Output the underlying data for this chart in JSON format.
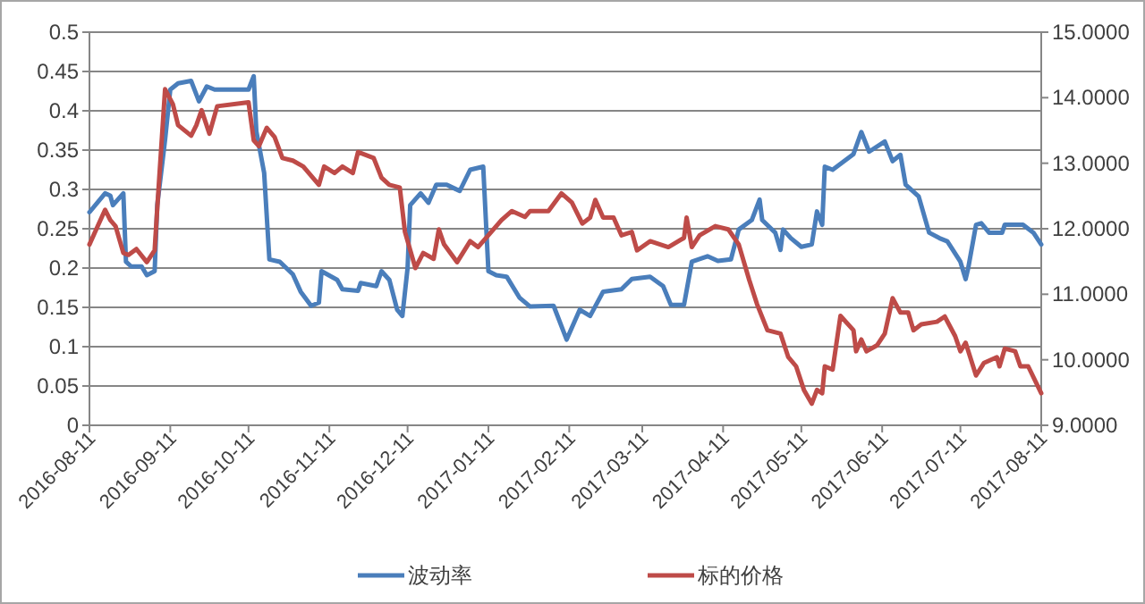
{
  "chart_data": {
    "type": "line",
    "legend": "bottom",
    "grid": "y",
    "line_style": "solid",
    "marker": "none",
    "xlim": [
      "2016-08-11",
      "2017-08-11"
    ],
    "xticks": [
      "2016-08-11",
      "2016-09-11",
      "2016-10-11",
      "2016-11-11",
      "2016-12-11",
      "2017-01-11",
      "2017-02-11",
      "2017-03-11",
      "2017-04-11",
      "2017-05-11",
      "2017-06-11",
      "2017-07-11",
      "2017-08-11"
    ],
    "ylim": [
      0,
      0.5
    ],
    "yticks": [
      0,
      0.05,
      0.1,
      0.15,
      0.2,
      0.25,
      0.3,
      0.35,
      0.4,
      0.45,
      0.5
    ],
    "y2lim": [
      9,
      15
    ],
    "y2ticks": [
      {
        "value": 9,
        "label": "9.0000"
      },
      {
        "value": 10,
        "label": "10.0000"
      },
      {
        "value": 11,
        "label": "11.0000"
      },
      {
        "value": 12,
        "label": "12.0000"
      },
      {
        "value": 13,
        "label": "13.0000"
      },
      {
        "value": 14,
        "label": "14.0000"
      },
      {
        "value": 15,
        "label": "15.0000"
      }
    ],
    "series": [
      {
        "name": "波动率",
        "color": "#4a7ebb",
        "x": [
          "2016-08-11",
          "2016-08-17",
          "2016-08-19",
          "2016-08-20",
          "2016-08-24",
          "2016-08-25",
          "2016-08-27",
          "2016-08-31",
          "2016-09-02",
          "2016-09-05",
          "2016-09-06",
          "2016-09-09",
          "2016-09-11",
          "2016-09-14",
          "2016-09-19",
          "2016-09-22",
          "2016-09-25",
          "2016-09-28",
          "2016-10-11",
          "2016-10-13",
          "2016-10-14",
          "2016-10-17",
          "2016-10-19",
          "2016-10-23",
          "2016-10-28",
          "2016-10-31",
          "2016-11-04",
          "2016-11-07",
          "2016-11-08",
          "2016-11-14",
          "2016-11-16",
          "2016-11-22",
          "2016-11-23",
          "2016-11-29",
          "2016-12-01",
          "2016-12-04",
          "2016-12-07",
          "2016-12-09",
          "2016-12-11",
          "2016-12-12",
          "2016-12-16",
          "2016-12-19",
          "2016-12-22",
          "2016-12-26",
          "2016-12-31",
          "2017-01-04",
          "2017-01-09",
          "2017-01-11",
          "2017-01-14",
          "2017-01-18",
          "2017-01-23",
          "2017-01-27",
          "2017-02-05",
          "2017-02-10",
          "2017-02-15",
          "2017-02-19",
          "2017-02-24",
          "2017-03-03",
          "2017-03-07",
          "2017-03-14",
          "2017-03-19",
          "2017-03-22",
          "2017-03-27",
          "2017-03-30",
          "2017-04-05",
          "2017-04-09",
          "2017-04-14",
          "2017-04-17",
          "2017-04-22",
          "2017-04-25",
          "2017-04-26",
          "2017-05-01",
          "2017-05-03",
          "2017-05-04",
          "2017-05-07",
          "2017-05-11",
          "2017-05-15",
          "2017-05-17",
          "2017-05-19",
          "2017-05-20",
          "2017-05-23",
          "2017-05-31",
          "2017-06-03",
          "2017-06-06",
          "2017-06-12",
          "2017-06-15",
          "2017-06-18",
          "2017-06-20",
          "2017-06-25",
          "2017-06-29",
          "2017-07-03",
          "2017-07-06",
          "2017-07-11",
          "2017-07-13",
          "2017-07-14",
          "2017-07-17",
          "2017-07-19",
          "2017-07-22",
          "2017-07-27",
          "2017-07-28",
          "2017-08-04",
          "2017-08-08",
          "2017-08-11"
        ],
        "values": [
          0.271,
          0.295,
          0.292,
          0.28,
          0.295,
          0.208,
          0.202,
          0.202,
          0.191,
          0.196,
          0.28,
          0.363,
          0.427,
          0.435,
          0.438,
          0.412,
          0.431,
          0.427,
          0.427,
          0.444,
          0.374,
          0.321,
          0.211,
          0.208,
          0.192,
          0.17,
          0.152,
          0.156,
          0.196,
          0.185,
          0.173,
          0.171,
          0.181,
          0.177,
          0.196,
          0.185,
          0.147,
          0.139,
          0.2,
          0.28,
          0.295,
          0.283,
          0.306,
          0.306,
          0.298,
          0.325,
          0.329,
          0.196,
          0.191,
          0.189,
          0.162,
          0.151,
          0.152,
          0.109,
          0.147,
          0.139,
          0.17,
          0.173,
          0.186,
          0.189,
          0.177,
          0.153,
          0.153,
          0.208,
          0.215,
          0.209,
          0.211,
          0.249,
          0.261,
          0.287,
          0.261,
          0.245,
          0.223,
          0.249,
          0.238,
          0.227,
          0.23,
          0.272,
          0.255,
          0.329,
          0.325,
          0.345,
          0.373,
          0.348,
          0.361,
          0.336,
          0.344,
          0.306,
          0.291,
          0.245,
          0.238,
          0.234,
          0.208,
          0.186,
          0.2,
          0.255,
          0.257,
          0.245,
          0.245,
          0.255,
          0.255,
          0.245,
          0.23
        ]
      },
      {
        "name": "标的价格",
        "color": "#be4b48",
        "axis": "y2",
        "x": [
          "2016-08-11",
          "2016-08-17",
          "2016-08-19",
          "2016-08-21",
          "2016-08-24",
          "2016-08-26",
          "2016-08-29",
          "2016-09-02",
          "2016-09-05",
          "2016-09-06",
          "2016-09-09",
          "2016-09-12",
          "2016-09-14",
          "2016-09-19",
          "2016-09-21",
          "2016-09-23",
          "2016-09-26",
          "2016-09-29",
          "2016-10-11",
          "2016-10-13",
          "2016-10-15",
          "2016-10-18",
          "2016-10-21",
          "2016-10-24",
          "2016-10-28",
          "2016-11-01",
          "2016-11-07",
          "2016-11-09",
          "2016-11-13",
          "2016-11-16",
          "2016-11-20",
          "2016-11-22",
          "2016-11-28",
          "2016-12-01",
          "2016-12-04",
          "2016-12-08",
          "2016-12-10",
          "2016-12-14",
          "2016-12-17",
          "2016-12-21",
          "2016-12-23",
          "2016-12-25",
          "2016-12-30",
          "2017-01-04",
          "2017-01-07",
          "2017-01-16",
          "2017-01-20",
          "2017-01-25",
          "2017-01-27",
          "2017-02-03",
          "2017-02-08",
          "2017-02-12",
          "2017-02-16",
          "2017-02-19",
          "2017-02-21",
          "2017-02-24",
          "2017-02-28",
          "2017-03-03",
          "2017-03-07",
          "2017-03-09",
          "2017-03-14",
          "2017-03-21",
          "2017-03-27",
          "2017-03-28",
          "2017-03-30",
          "2017-04-02",
          "2017-04-08",
          "2017-04-13",
          "2017-04-17",
          "2017-04-21",
          "2017-04-24",
          "2017-04-28",
          "2017-05-03",
          "2017-05-06",
          "2017-05-09",
          "2017-05-12",
          "2017-05-15",
          "2017-05-17",
          "2017-05-19",
          "2017-05-20",
          "2017-05-23",
          "2017-05-26",
          "2017-05-31",
          "2017-06-01",
          "2017-06-03",
          "2017-06-05",
          "2017-06-09",
          "2017-06-12",
          "2017-06-15",
          "2017-06-18",
          "2017-06-21",
          "2017-06-23",
          "2017-06-26",
          "2017-07-02",
          "2017-07-05",
          "2017-07-09",
          "2017-07-11",
          "2017-07-13",
          "2017-07-17",
          "2017-07-20",
          "2017-07-25",
          "2017-07-26",
          "2017-07-28",
          "2017-08-01",
          "2017-08-03",
          "2017-08-06",
          "2017-08-11"
        ],
        "values": [
          11.76,
          12.29,
          12.13,
          12.04,
          11.63,
          11.6,
          11.69,
          11.49,
          11.67,
          12.31,
          14.13,
          13.9,
          13.58,
          13.42,
          13.58,
          13.81,
          13.45,
          13.87,
          13.93,
          13.35,
          13.26,
          13.54,
          13.4,
          13.08,
          13.04,
          12.95,
          12.67,
          12.95,
          12.85,
          12.95,
          12.85,
          13.17,
          13.08,
          12.78,
          12.67,
          12.63,
          11.95,
          11.4,
          11.63,
          11.54,
          11.99,
          11.76,
          11.49,
          11.81,
          11.72,
          12.13,
          12.27,
          12.18,
          12.27,
          12.27,
          12.54,
          12.4,
          12.08,
          12.17,
          12.44,
          12.17,
          12.17,
          11.9,
          11.95,
          11.67,
          11.81,
          11.72,
          11.86,
          12.17,
          11.72,
          11.9,
          12.04,
          11.99,
          11.76,
          11.22,
          10.85,
          10.45,
          10.4,
          10.04,
          9.9,
          9.54,
          9.33,
          9.54,
          9.49,
          9.9,
          9.85,
          10.67,
          10.45,
          10.13,
          10.31,
          10.13,
          10.22,
          10.4,
          10.94,
          10.72,
          10.72,
          10.45,
          10.54,
          10.58,
          10.66,
          10.36,
          10.13,
          10.26,
          9.76,
          9.95,
          10.04,
          9.9,
          10.17,
          10.13,
          9.9,
          9.9,
          9.49
        ]
      }
    ]
  }
}
